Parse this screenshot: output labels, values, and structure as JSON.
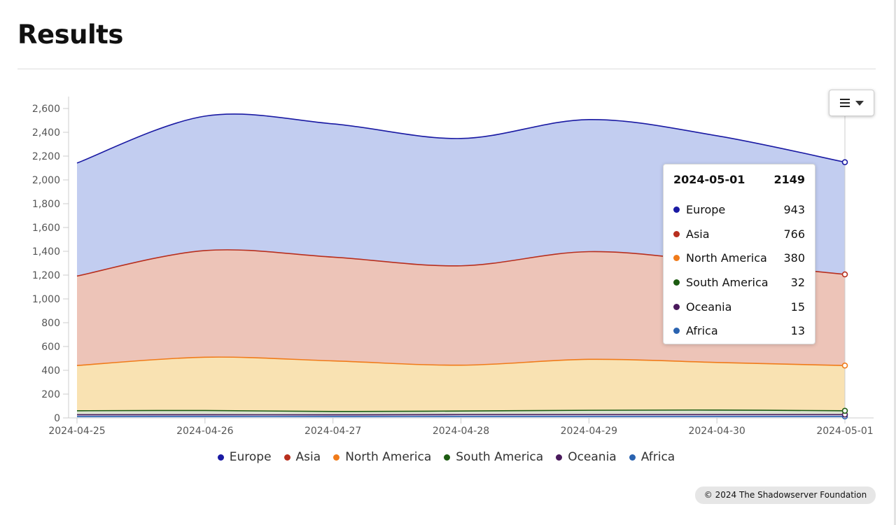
{
  "page": {
    "title": "Results",
    "credits": "© 2024 The Shadowserver Foundation"
  },
  "chart_menu": {
    "icon": "hamburger-menu-icon"
  },
  "chart_data": {
    "type": "area",
    "stacked": true,
    "title": "",
    "xlabel": "",
    "ylabel": "",
    "ylim": [
      0,
      2700
    ],
    "yticks": [
      0,
      200,
      400,
      600,
      800,
      1000,
      1200,
      1400,
      1600,
      1800,
      2000,
      2200,
      2400,
      2600
    ],
    "ytick_labels": [
      "0",
      "200",
      "400",
      "600",
      "800",
      "1,000",
      "1,200",
      "1,400",
      "1,600",
      "1,800",
      "2,000",
      "2,200",
      "2,400",
      "2,600"
    ],
    "categories": [
      "2024-04-25",
      "2024-04-26",
      "2024-04-27",
      "2024-04-28",
      "2024-04-29",
      "2024-04-30",
      "2024-05-01"
    ],
    "series": [
      {
        "name": "Europe",
        "color": "#1a1aa3",
        "fill": "#c2cdf0",
        "values": [
          950,
          1130,
          1120,
          1070,
          1110,
          1060,
          943
        ]
      },
      {
        "name": "Asia",
        "color": "#b82f1e",
        "fill": "#edc4b8",
        "values": [
          752,
          896,
          872,
          835,
          905,
          845,
          766
        ]
      },
      {
        "name": "North America",
        "color": "#f07b1a",
        "fill": "#f9e2b2",
        "values": [
          380,
          448,
          425,
          385,
          428,
          400,
          380
        ]
      },
      {
        "name": "South America",
        "color": "#1d5c12",
        "fill": "#dce3d0",
        "values": [
          33,
          35,
          28,
          30,
          36,
          38,
          32
        ]
      },
      {
        "name": "Oceania",
        "color": "#4a1a5c",
        "fill": "#e0d4e4",
        "values": [
          15,
          14,
          14,
          15,
          15,
          15,
          15
        ]
      },
      {
        "name": "Africa",
        "color": "#2a63b0",
        "fill": "#cfdcf0",
        "values": [
          12,
          13,
          12,
          13,
          13,
          13,
          13
        ]
      }
    ],
    "tooltip": {
      "date": "2024-05-01",
      "total": "2149",
      "rows": [
        {
          "name": "Europe",
          "value": "943"
        },
        {
          "name": "Asia",
          "value": "766"
        },
        {
          "name": "North America",
          "value": "380"
        },
        {
          "name": "South America",
          "value": "32"
        },
        {
          "name": "Oceania",
          "value": "15"
        },
        {
          "name": "Africa",
          "value": "13"
        }
      ]
    },
    "legend": [
      "Europe",
      "Asia",
      "North America",
      "South America",
      "Oceania",
      "Africa"
    ]
  }
}
